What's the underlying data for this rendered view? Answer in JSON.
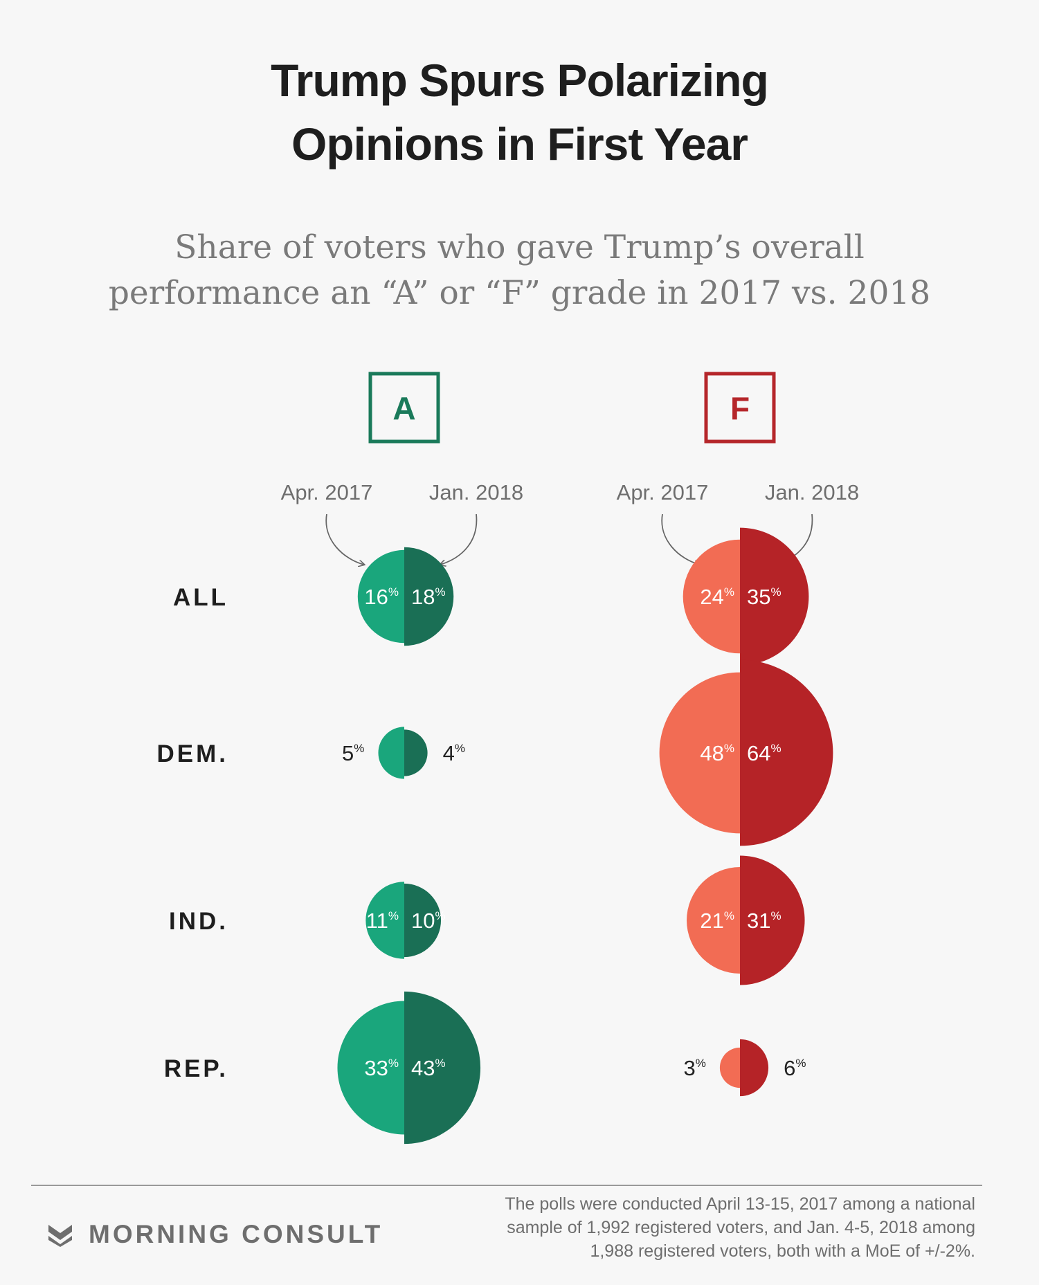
{
  "chart_data": {
    "type": "split-bubble",
    "title": "Trump Spurs Polarizing Opinions in First Year",
    "title_lines": [
      "Trump Spurs Polarizing",
      "Opinions in First Year"
    ],
    "subtitle": "Share of voters who gave Trump’s overall performance an “A” or “F” grade in 2017 vs. 2018",
    "subtitle_lines": [
      "Share of voters who gave Trump’s overall",
      "performance an “A” or “F” grade in 2017 vs. 2018"
    ],
    "unit": "%",
    "periods": [
      "Apr. 2017",
      "Jan. 2018"
    ],
    "groups": [
      "ALL",
      "DEM.",
      "IND.",
      "REP."
    ],
    "panels": [
      {
        "grade": "A",
        "colors": {
          "accent": "#1a7a5a",
          "left": "#1aa67c",
          "right": "#1a6f55"
        },
        "values": [
          {
            "group": "ALL",
            "apr_2017": 16,
            "jan_2018": 18
          },
          {
            "group": "DEM.",
            "apr_2017": 5,
            "jan_2018": 4
          },
          {
            "group": "IND.",
            "apr_2017": 11,
            "jan_2018": 10
          },
          {
            "group": "REP.",
            "apr_2017": 33,
            "jan_2018": 43
          }
        ]
      },
      {
        "grade": "F",
        "colors": {
          "accent": "#b5262a",
          "left": "#f26c54",
          "right": "#b52327"
        },
        "values": [
          {
            "group": "ALL",
            "apr_2017": 24,
            "jan_2018": 35
          },
          {
            "group": "DEM.",
            "apr_2017": 48,
            "jan_2018": 64
          },
          {
            "group": "IND.",
            "apr_2017": 21,
            "jan_2018": 31
          },
          {
            "group": "REP.",
            "apr_2017": 3,
            "jan_2018": 6
          }
        ]
      }
    ]
  },
  "footer": {
    "brand": "MORNING CONSULT",
    "note_lines": [
      "The polls were conducted April 13-15, 2017 among a national",
      "sample of 1,992 registered voters, and Jan. 4-5, 2018 among",
      "1,988 registered voters, both with a MoE of +/-2%."
    ]
  }
}
